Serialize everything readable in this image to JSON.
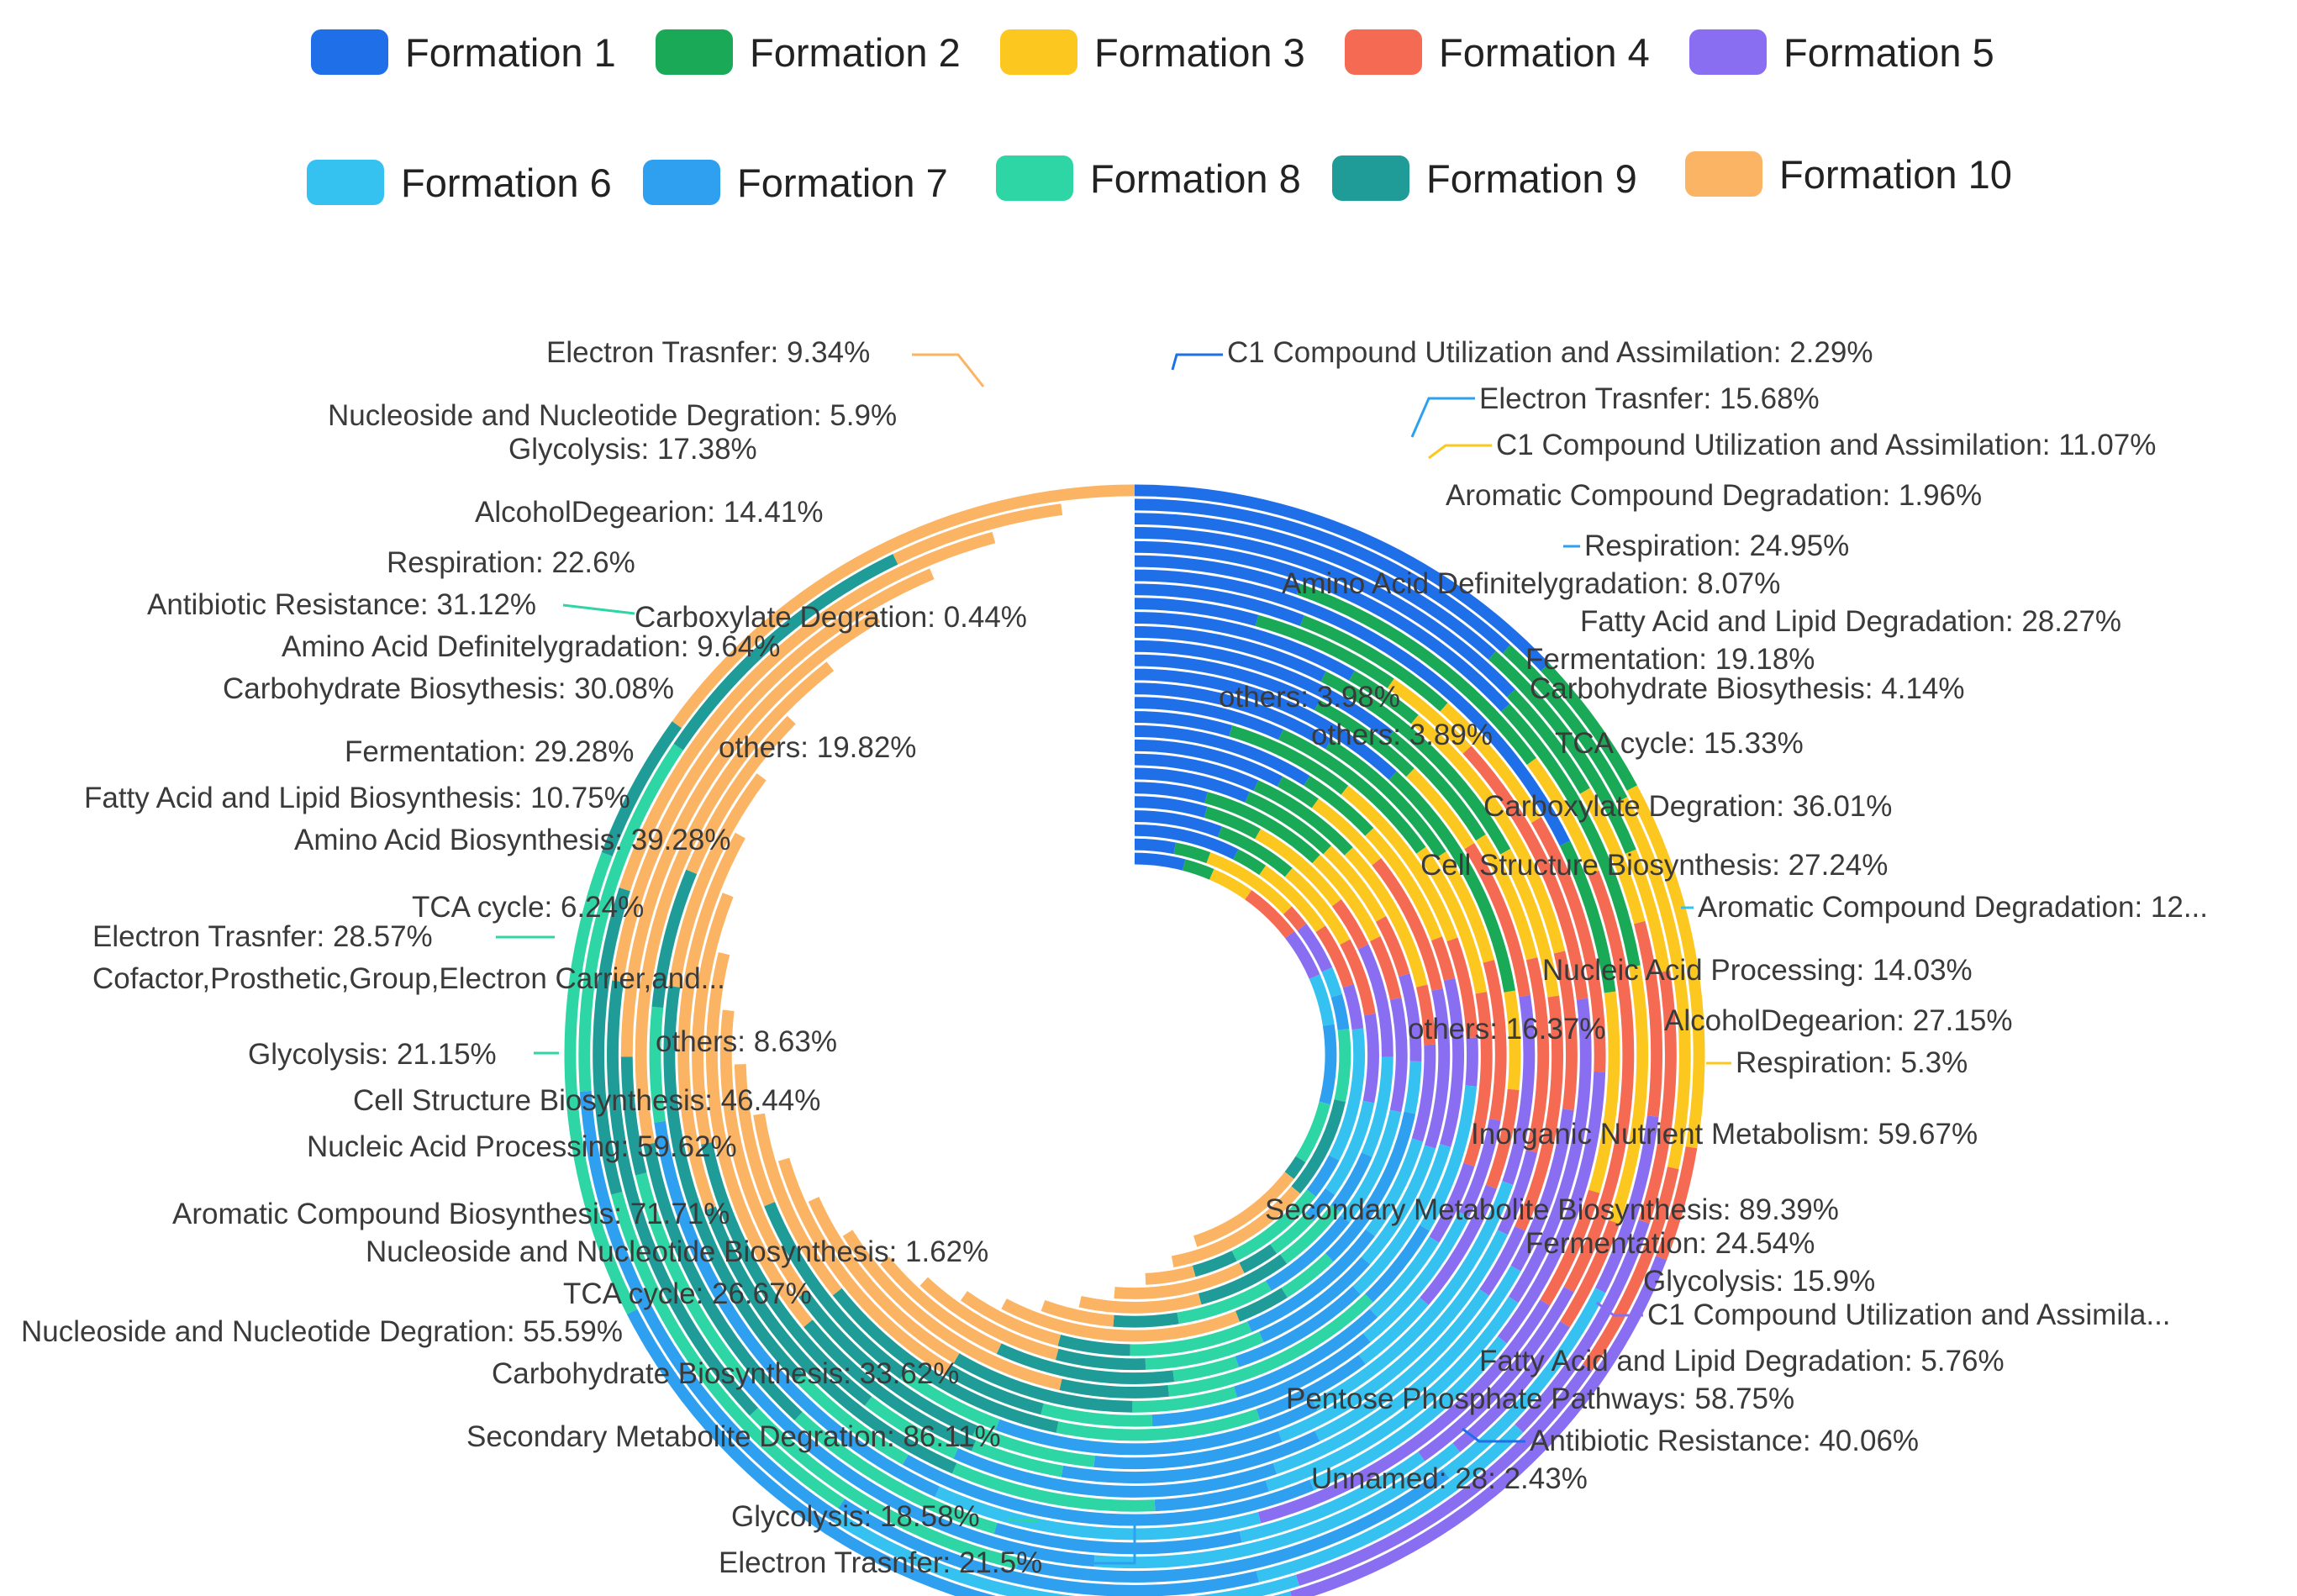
{
  "chart_data": {
    "type": "multi-ring donut",
    "legend": [
      {
        "name": "Formation 1",
        "color": "#1f6fe8"
      },
      {
        "name": "Formation 2",
        "color": "#19a957"
      },
      {
        "name": "Formation 3",
        "color": "#fcc81f"
      },
      {
        "name": "Formation 4",
        "color": "#f56a53"
      },
      {
        "name": "Formation 5",
        "color": "#8a6ef2"
      },
      {
        "name": "Formation 6",
        "color": "#35c2f0"
      },
      {
        "name": "Formation 7",
        "color": "#2fa0ef"
      },
      {
        "name": "Formation 8",
        "color": "#2ed6a6"
      },
      {
        "name": "Formation 9",
        "color": "#1f9c98"
      },
      {
        "name": "Formation 10",
        "color": "#fbb463"
      }
    ],
    "labels": [
      {
        "text": "Electron Trasnfer: 9.34%",
        "side": "left"
      },
      {
        "text": "Nucleoside and Nucleotide Degration: 5.9%",
        "side": "left"
      },
      {
        "text": "Glycolysis: 17.38%",
        "side": "left"
      },
      {
        "text": "AlcoholDegearion: 14.41%",
        "side": "left"
      },
      {
        "text": "Respiration: 22.6%",
        "side": "left"
      },
      {
        "text": "Antibiotic Resistance: 31.12%",
        "side": "left"
      },
      {
        "text": "Carboxylate Degration: 0.44%",
        "side": "left"
      },
      {
        "text": "Amino Acid Definitelygradation: 9.64%",
        "side": "left"
      },
      {
        "text": "Carbohydrate Biosythesis: 30.08%",
        "side": "left"
      },
      {
        "text": "Fermentation: 29.28%",
        "side": "left"
      },
      {
        "text": "others: 19.82%",
        "side": "left"
      },
      {
        "text": "Fatty Acid and Lipid Biosynthesis: 10.75%",
        "side": "left"
      },
      {
        "text": "Amino Acid Biosynthesis: 39.28%",
        "side": "left"
      },
      {
        "text": "TCA cycle: 6.24%",
        "side": "left"
      },
      {
        "text": "Electron Trasnfer: 28.57%",
        "side": "left"
      },
      {
        "text": "Cofactor,Prosthetic,Group,Electron Carrier,and...",
        "side": "left"
      },
      {
        "text": "Glycolysis: 21.15%",
        "side": "left"
      },
      {
        "text": "others: 8.63%",
        "side": "left"
      },
      {
        "text": "Cell Structure Biosynthesis: 46.44%",
        "side": "left"
      },
      {
        "text": "Nucleic Acid Processing: 59.62%",
        "side": "left"
      },
      {
        "text": "Aromatic Compound Biosynthesis: 71.71%",
        "side": "left"
      },
      {
        "text": "Nucleoside and Nucleotide Biosynthesis: 1.62%",
        "side": "left"
      },
      {
        "text": "TCA cycle: 26.67%",
        "side": "left"
      },
      {
        "text": "Nucleoside and Nucleotide Degration: 55.59%",
        "side": "left"
      },
      {
        "text": "Carbohydrate Biosynthesis: 33.62%",
        "side": "left"
      },
      {
        "text": "Secondary Metabolite Degration: 86.11%",
        "side": "left"
      },
      {
        "text": "Glycolysis: 18.58%",
        "side": "left"
      },
      {
        "text": "Electron Trasnfer: 21.5%",
        "side": "left"
      },
      {
        "text": "C1 Compound Utilization and Assimilation: 2.29%",
        "side": "right"
      },
      {
        "text": "Electron Trasnfer: 15.68%",
        "side": "right"
      },
      {
        "text": "C1 Compound Utilization and Assimilation: 11.07%",
        "side": "right"
      },
      {
        "text": "Aromatic Compound Degradation: 1.96%",
        "side": "right"
      },
      {
        "text": "Respiration: 24.95%",
        "side": "right"
      },
      {
        "text": "Amino Acid Definitelygradation: 8.07%",
        "side": "right"
      },
      {
        "text": "Fatty Acid and Lipid Degradation: 28.27%",
        "side": "right"
      },
      {
        "text": "Fermentation: 19.18%",
        "side": "right"
      },
      {
        "text": "others: 3.98%",
        "side": "right"
      },
      {
        "text": "Carbohydrate Biosythesis: 4.14%",
        "side": "right"
      },
      {
        "text": "others: 3.89%",
        "side": "right"
      },
      {
        "text": "TCA cycle: 15.33%",
        "side": "right"
      },
      {
        "text": "Carboxylate Degration: 36.01%",
        "side": "right"
      },
      {
        "text": "Cell Structure Biosynthesis: 27.24%",
        "side": "right"
      },
      {
        "text": "Aromatic Compound Degradation: 12...",
        "side": "right"
      },
      {
        "text": "Nucleic Acid Processing: 14.03%",
        "side": "right"
      },
      {
        "text": "AlcoholDegearion: 27.15%",
        "side": "right"
      },
      {
        "text": "others: 16.37%",
        "side": "right"
      },
      {
        "text": "Respiration: 5.3%",
        "side": "right"
      },
      {
        "text": "Inorganic Nutrient Metabolism: 59.67%",
        "side": "right"
      },
      {
        "text": "Secondary Metabolite Biosynthesis: 89.39%",
        "side": "right"
      },
      {
        "text": "Fermentation: 24.54%",
        "side": "right"
      },
      {
        "text": "Glycolysis: 15.9%",
        "side": "right"
      },
      {
        "text": "C1 Compound Utilization and Assimila...",
        "side": "right"
      },
      {
        "text": "Fatty Acid and Lipid Degradation: 5.76%",
        "side": "right"
      },
      {
        "text": "Pentose Phosphate Pathways: 58.75%",
        "side": "right"
      },
      {
        "text": "Antibiotic Resistance: 40.06%",
        "side": "right"
      },
      {
        "text": "Unnamed: 28: 2.43%",
        "side": "right"
      }
    ]
  }
}
